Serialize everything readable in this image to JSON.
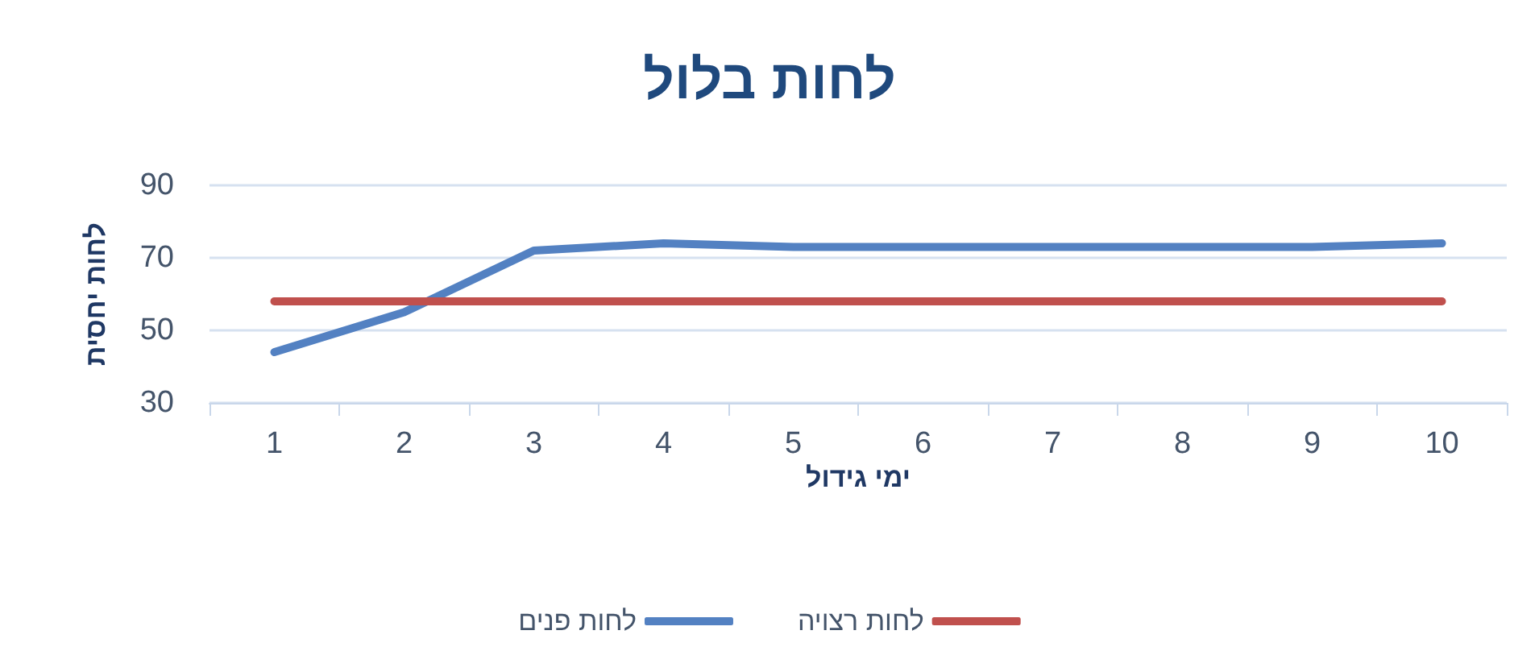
{
  "chart_data": {
    "type": "line",
    "title": "לחות בלול",
    "xlabel": "ימי גידול",
    "ylabel": "לחות יחסית",
    "categories": [
      "1",
      "2",
      "3",
      "4",
      "5",
      "6",
      "7",
      "8",
      "9",
      "10"
    ],
    "series": [
      {
        "name": "לחות פנים",
        "color": "#5381c2",
        "values": [
          44,
          55,
          72,
          74,
          73,
          73,
          73,
          73,
          73,
          74
        ]
      },
      {
        "name": "לחות רצויה",
        "color": "#c0504d",
        "values": [
          58,
          58,
          58,
          58,
          58,
          58,
          58,
          58,
          58,
          58
        ]
      }
    ],
    "ylim": [
      30,
      90
    ],
    "yticks": [
      30,
      50,
      70,
      90
    ],
    "grid": "y",
    "legend": "bottom",
    "marker": "none",
    "line_style": "solid"
  }
}
